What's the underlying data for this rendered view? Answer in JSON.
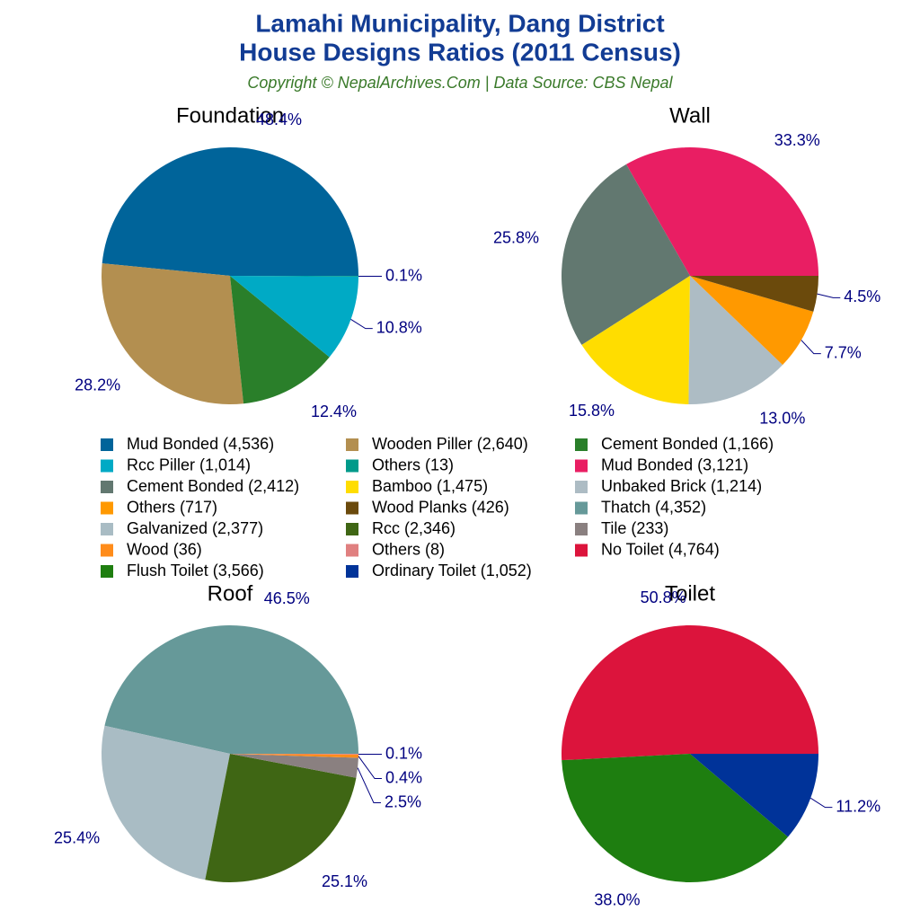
{
  "title_lines": [
    "Lamahi Municipality, Dang District",
    "House Designs Ratios (2011 Census)"
  ],
  "subtitle": "Copyright © NepalArchives.Com | Data Source: CBS Nepal",
  "chart_data": [
    {
      "type": "pie",
      "title": "Foundation",
      "categories": [
        "Mud Bonded (4,536)",
        "Wooden Piller (2,640)",
        "Cement Bonded (1,166)",
        "Rcc Piller (1,014)",
        "Others (13)"
      ],
      "values": [
        48.4,
        28.2,
        12.4,
        10.8,
        0.1
      ],
      "value_labels": [
        "48.4%",
        "28.2%",
        "12.4%",
        "10.8%",
        "0.1%"
      ],
      "colors": [
        "#00649a",
        "#b38f50",
        "#2a7f2a",
        "#00aac5",
        "#009a8a"
      ]
    },
    {
      "type": "pie",
      "title": "Wall",
      "categories": [
        "Mud Bonded (3,121)",
        "Cement Bonded (2,412)",
        "Bamboo (1,475)",
        "Unbaked Brick (1,214)",
        "Others (717)",
        "Wood Planks (426)"
      ],
      "values": [
        33.3,
        25.8,
        15.8,
        13.0,
        7.7,
        4.5
      ],
      "value_labels": [
        "33.3%",
        "25.8%",
        "15.8%",
        "13.0%",
        "7.7%",
        "4.5%"
      ],
      "colors": [
        "#e91e63",
        "#627870",
        "#ffdd00",
        "#adbcc4",
        "#ff9900",
        "#6b4a0c"
      ]
    },
    {
      "type": "pie",
      "title": "Roof",
      "categories": [
        "Thatch (4,352)",
        "Galvanized (2,377)",
        "Rcc (2,346)",
        "Tile (233)",
        "Wood (36)",
        "Others (8)"
      ],
      "values": [
        46.5,
        25.4,
        25.1,
        2.5,
        0.4,
        0.1
      ],
      "value_labels": [
        "46.5%",
        "25.4%",
        "25.1%",
        "2.5%",
        "0.4%",
        "0.1%"
      ],
      "colors": [
        "#669999",
        "#a9bcc4",
        "#3f6614",
        "#8a8080",
        "#ff8c1a",
        "#e08080"
      ]
    },
    {
      "type": "pie",
      "title": "Toilet",
      "categories": [
        "No Toilet (4,764)",
        "Flush Toilet (3,566)",
        "Ordinary Toilet (1,052)"
      ],
      "values": [
        50.8,
        38.0,
        11.2
      ],
      "value_labels": [
        "50.8%",
        "38.0%",
        "11.2%"
      ],
      "colors": [
        "#dc143c",
        "#1e7e10",
        "#003399"
      ]
    }
  ]
}
